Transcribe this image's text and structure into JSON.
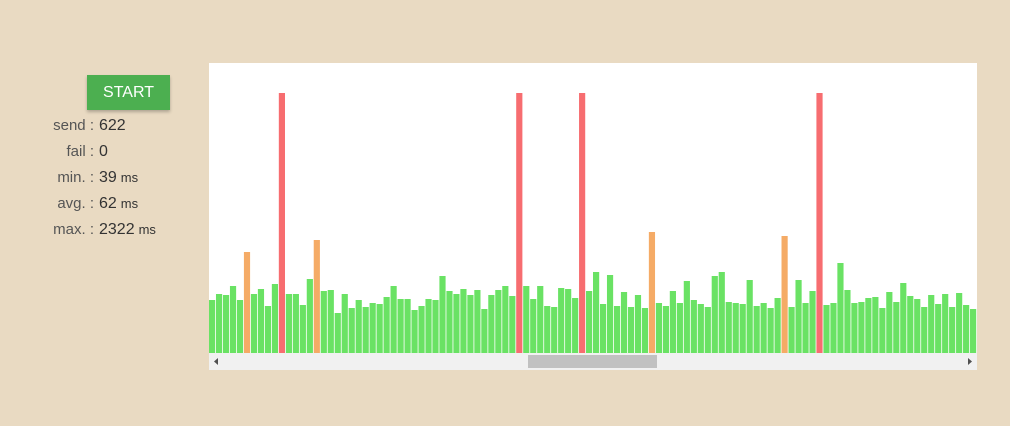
{
  "controls": {
    "start": "START"
  },
  "stats": [
    {
      "label": "send :",
      "value": 622
    },
    {
      "label": "fail :",
      "value": 0
    },
    {
      "label": "min. :",
      "value": 39,
      "unit": "ms"
    },
    {
      "label": "avg. :",
      "value": 62,
      "unit": "ms"
    },
    {
      "label": "max. :",
      "value": 2322,
      "unit": "ms"
    }
  ],
  "chart_data": {
    "type": "bar",
    "values": [
      53,
      59,
      58,
      67,
      53,
      101,
      59,
      64,
      47,
      69,
      260,
      59,
      59,
      48,
      74,
      113,
      62,
      63,
      40,
      59,
      45,
      53,
      46,
      50,
      49,
      56,
      67,
      54,
      54,
      43,
      47,
      54,
      53,
      77,
      62,
      59,
      64,
      58,
      63,
      44,
      58,
      63,
      67,
      57,
      260,
      67,
      54,
      67,
      47,
      46,
      65,
      64,
      55,
      260,
      62,
      81,
      49,
      78,
      47,
      61,
      46,
      58,
      45,
      121,
      50,
      47,
      62,
      50,
      72,
      53,
      49,
      46,
      77,
      81,
      51,
      50,
      49,
      73,
      47,
      50,
      45,
      55,
      117,
      46,
      73,
      50,
      62,
      260,
      48,
      50,
      90,
      63,
      50,
      51,
      55,
      56,
      45,
      61,
      51,
      70,
      57,
      54,
      46,
      58,
      49,
      59,
      46,
      60,
      48,
      44
    ],
    "ylim": [
      0,
      290
    ],
    "colors": {
      "ok": "#6ae264",
      "slow": "#f5ab66",
      "fail": "#f76d70"
    },
    "slow_from": 100,
    "fail_from": 200
  }
}
